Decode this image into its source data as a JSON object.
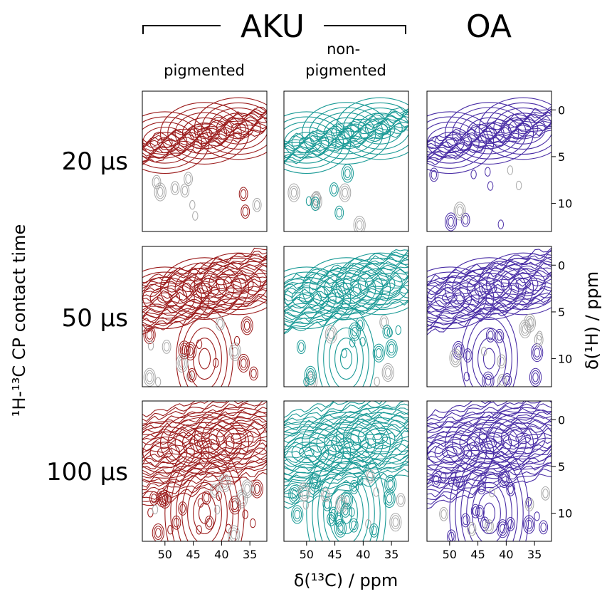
{
  "chart_data": {
    "type": "contour",
    "groups": [
      {
        "label": "AKU",
        "columns": [
          0,
          1
        ]
      },
      {
        "label": "OA",
        "columns": [
          2
        ]
      }
    ],
    "columns": [
      {
        "label": "pigmented",
        "color": "#9b1c1c"
      },
      {
        "label": "non-\npigmented",
        "color": "#1a9a96"
      },
      {
        "label": "",
        "color": "#4a2ea6"
      }
    ],
    "negative_color": "#a8a8a8",
    "rows": [
      {
        "label": "20 µs"
      },
      {
        "label": "50 µs"
      },
      {
        "label": "100 µs"
      }
    ],
    "xlabel": "δ(¹³C) / ppm",
    "ylabel": "¹H-¹³C CP contact time",
    "y2label": "δ(¹H) / ppm",
    "x_ticks": [
      50,
      45,
      40,
      35
    ],
    "y_ticks": [
      0,
      5,
      10
    ],
    "xlim": [
      54,
      32
    ],
    "ylim": [
      -2,
      13
    ],
    "peaks_ppm": [
      {
        "c13": 43,
        "h1": 2.5
      },
      {
        "c13": 37,
        "h1": 2.0
      },
      {
        "c13": 50,
        "h1": 3.5
      },
      {
        "c13": 43,
        "h1": 10.0
      }
    ]
  }
}
